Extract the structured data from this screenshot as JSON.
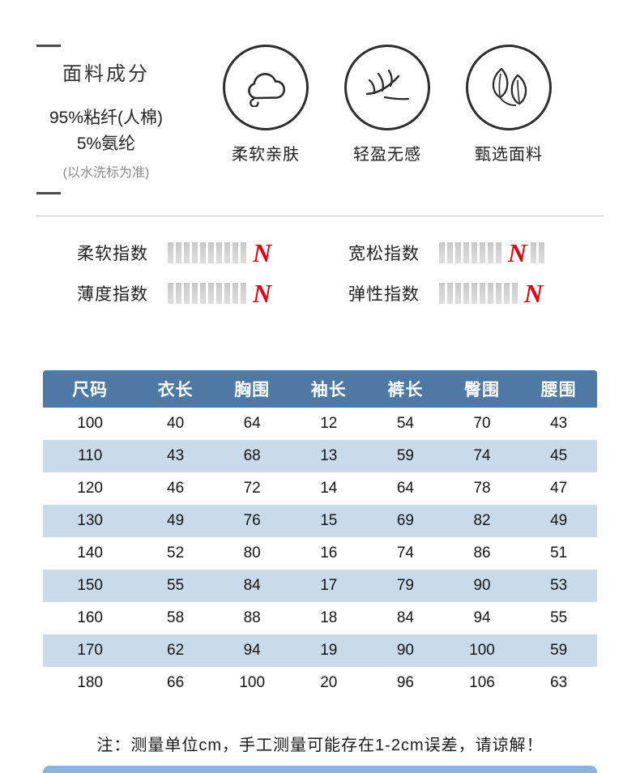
{
  "fabric": {
    "title": "面料成分",
    "composition_line1": "95%粘纤(人棉)",
    "composition_line2": "5%氨纶",
    "note": "(以水洗标为准)",
    "features": [
      {
        "icon": "cloud-icon",
        "label": "柔软亲肤"
      },
      {
        "icon": "feather-icon",
        "label": "轻盈无感"
      },
      {
        "icon": "leaves-icon",
        "label": "甄选面料"
      }
    ]
  },
  "indices": [
    {
      "label": "柔软指数",
      "segments_before": 10,
      "mark": "N",
      "segments_after": 0
    },
    {
      "label": "宽松指数",
      "segments_before": 8,
      "mark": "N",
      "segments_after": 2
    },
    {
      "label": "薄度指数",
      "segments_before": 10,
      "mark": "N",
      "segments_after": 0
    },
    {
      "label": "弹性指数",
      "segments_before": 10,
      "mark": "N",
      "segments_after": 0
    }
  ],
  "size_table": {
    "headers": [
      "尺码",
      "衣长",
      "胸围",
      "袖长",
      "裤长",
      "臀围",
      "腰围"
    ],
    "rows": [
      [
        "100",
        "40",
        "64",
        "12",
        "54",
        "70",
        "43"
      ],
      [
        "110",
        "43",
        "68",
        "13",
        "59",
        "74",
        "45"
      ],
      [
        "120",
        "46",
        "72",
        "14",
        "64",
        "78",
        "47"
      ],
      [
        "130",
        "49",
        "76",
        "15",
        "69",
        "82",
        "49"
      ],
      [
        "140",
        "52",
        "80",
        "16",
        "74",
        "86",
        "51"
      ],
      [
        "150",
        "55",
        "84",
        "17",
        "79",
        "90",
        "53"
      ],
      [
        "160",
        "58",
        "88",
        "18",
        "84",
        "94",
        "55"
      ],
      [
        "170",
        "62",
        "94",
        "19",
        "90",
        "100",
        "59"
      ],
      [
        "180",
        "66",
        "100",
        "20",
        "96",
        "106",
        "63"
      ]
    ]
  },
  "footer_note": "注：测量单位cm，手工测量可能存在1-2cm误差，请谅解！",
  "colors": {
    "table_header_bg": "#4e79a4",
    "table_row_alt_bg": "#c9dbea",
    "index_mark_red": "#e60012",
    "index_segment_gray": "#dedede",
    "next_section_strip_blue": "#8cb3d9"
  }
}
